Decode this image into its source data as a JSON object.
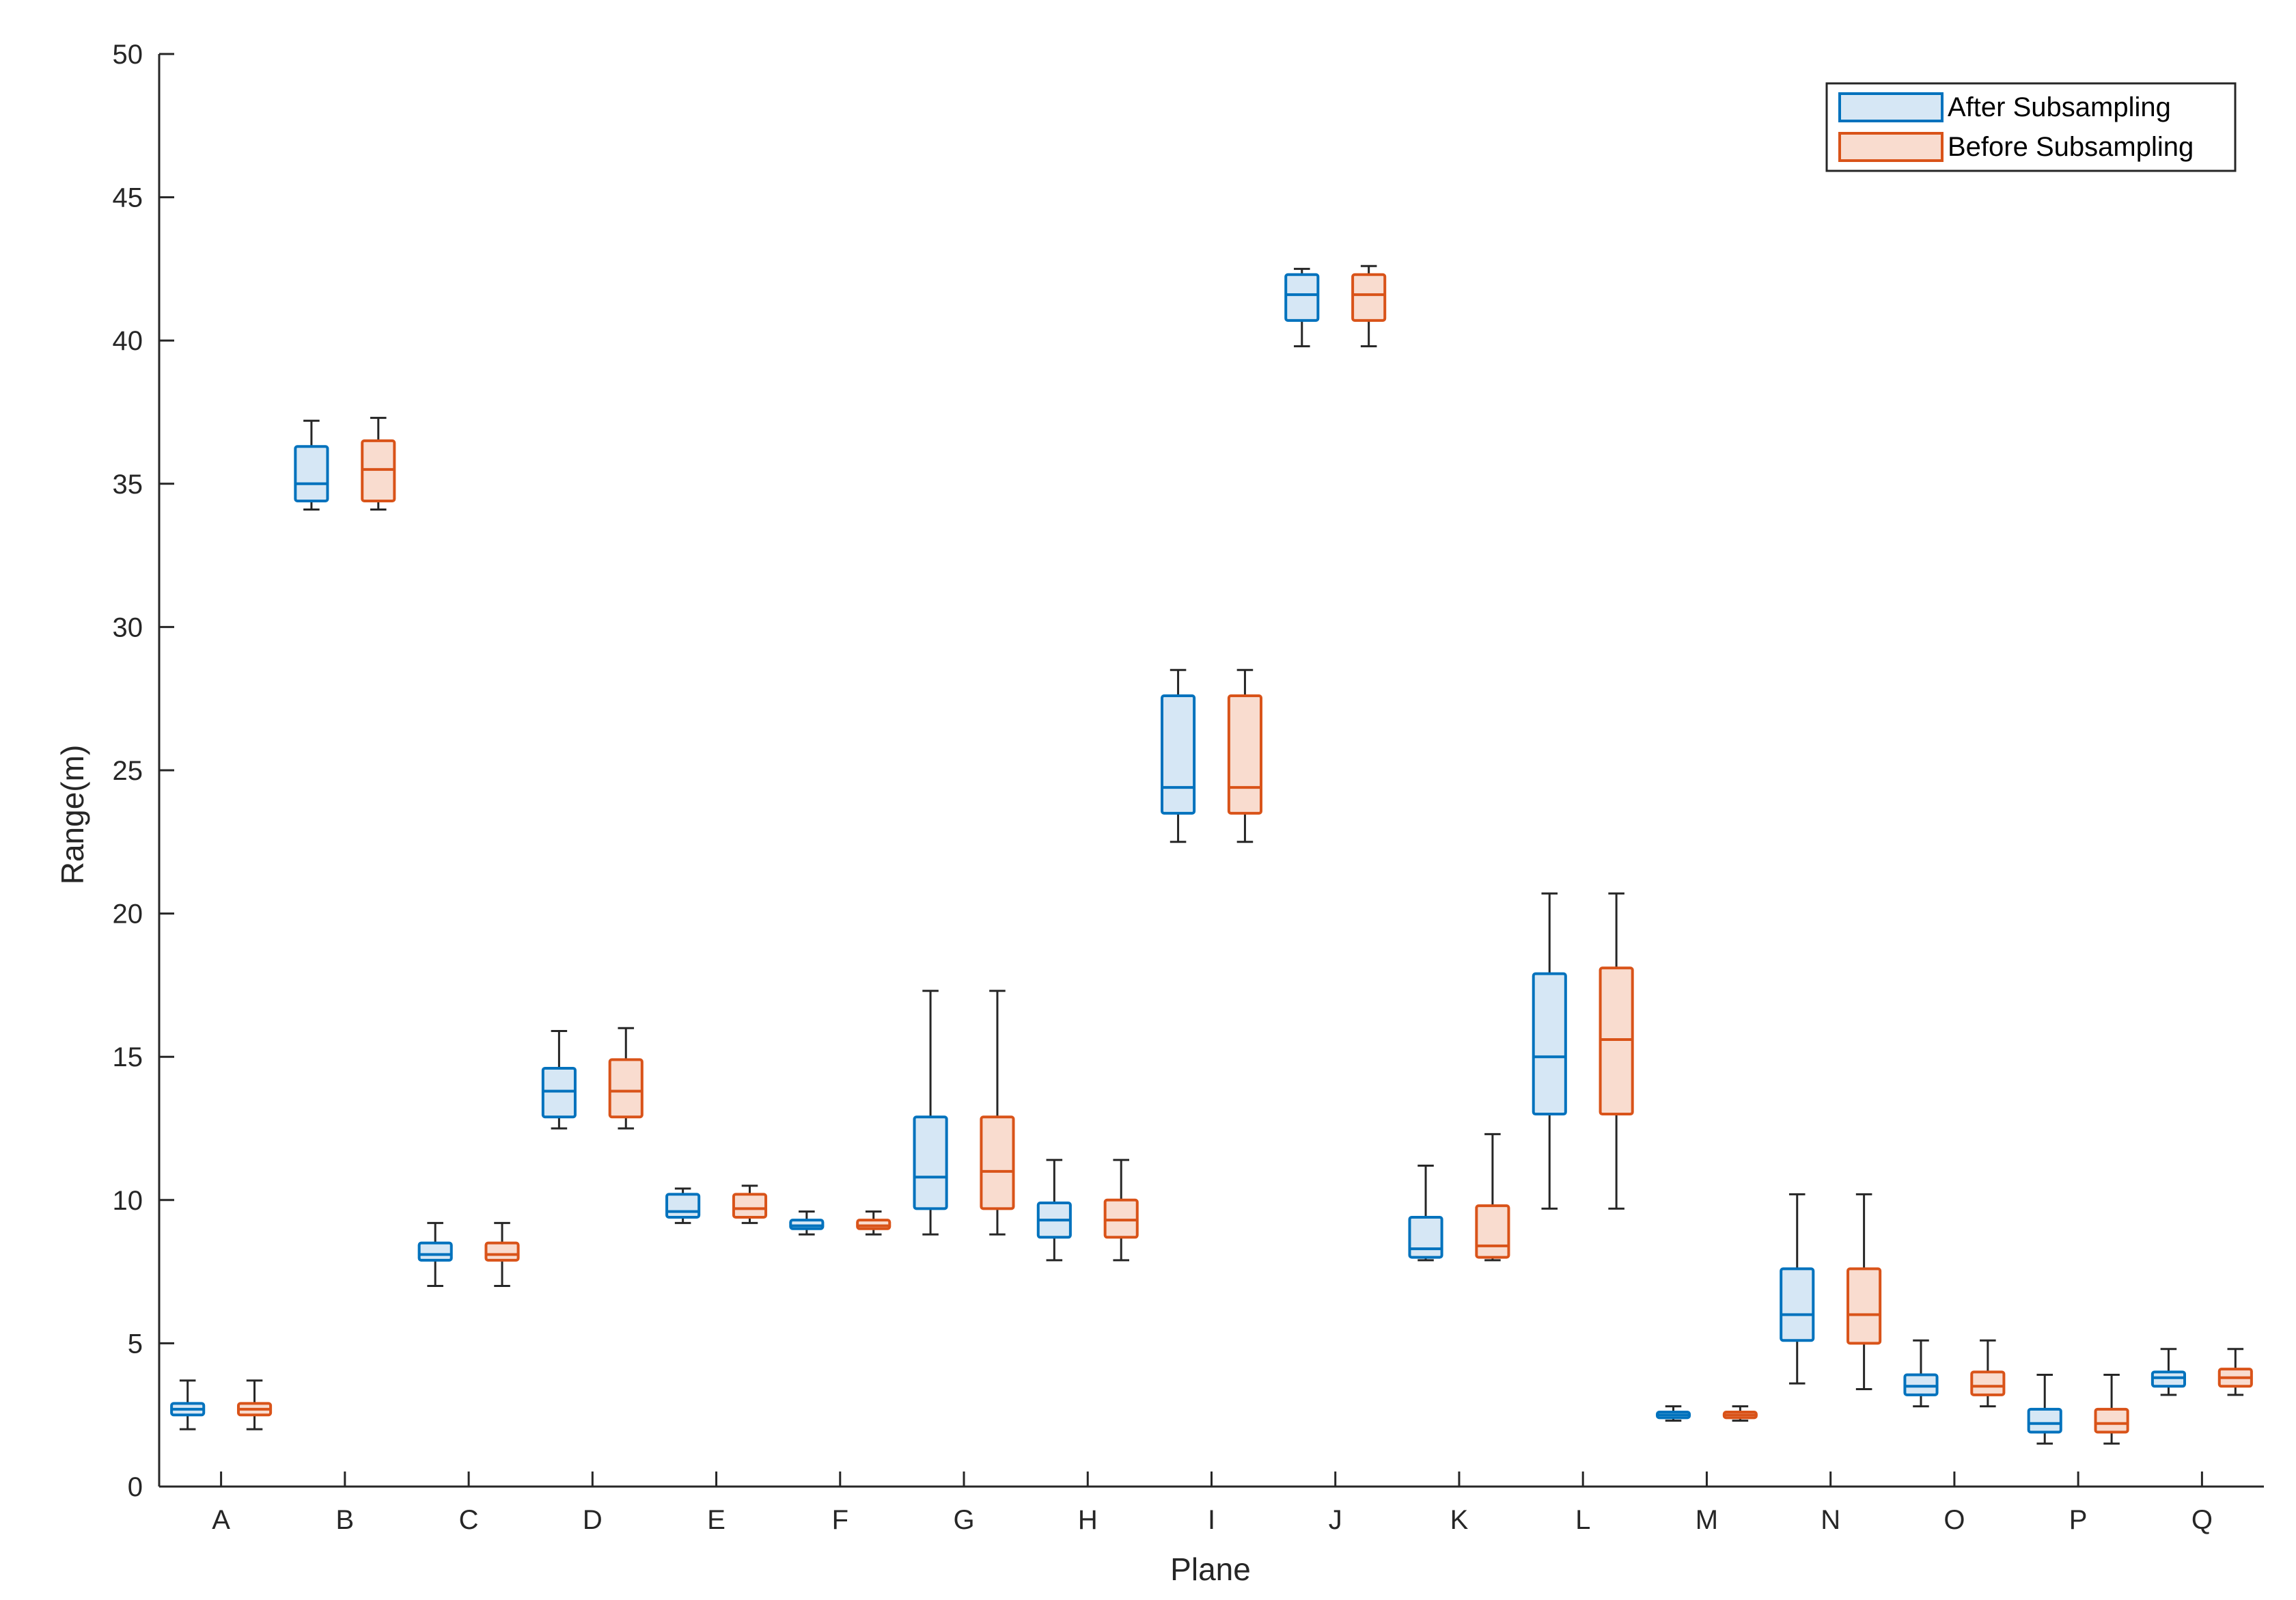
{
  "chart_data": {
    "type": "boxplot",
    "title": "",
    "xlabel": "Plane",
    "ylabel": "Range(m)",
    "ylim": [
      0,
      50
    ],
    "yticks": [
      0,
      5,
      10,
      15,
      20,
      25,
      30,
      35,
      40,
      45,
      50
    ],
    "categories": [
      "A",
      "B",
      "C",
      "D",
      "E",
      "F",
      "G",
      "H",
      "I",
      "J",
      "K",
      "L",
      "M",
      "N",
      "O",
      "P",
      "Q"
    ],
    "legend_position": "top-right",
    "series": [
      {
        "name": "After Subsampling",
        "edge_color": "#0072BD",
        "fill_color": "#D6E7F5",
        "boxes": [
          {
            "min": 2.0,
            "q1": 2.5,
            "median": 2.7,
            "q3": 2.9,
            "max": 3.7
          },
          {
            "min": 34.1,
            "q1": 34.4,
            "median": 35.0,
            "q3": 36.3,
            "max": 37.2
          },
          {
            "min": 7.0,
            "q1": 7.9,
            "median": 8.1,
            "q3": 8.5,
            "max": 9.2
          },
          {
            "min": 12.5,
            "q1": 12.9,
            "median": 13.8,
            "q3": 14.6,
            "max": 15.9
          },
          {
            "min": 9.2,
            "q1": 9.4,
            "median": 9.6,
            "q3": 10.2,
            "max": 10.4
          },
          {
            "min": 8.8,
            "q1": 9.0,
            "median": 9.1,
            "q3": 9.3,
            "max": 9.6
          },
          {
            "min": 8.8,
            "q1": 9.7,
            "median": 10.8,
            "q3": 12.9,
            "max": 17.3
          },
          {
            "min": 7.9,
            "q1": 8.7,
            "median": 9.3,
            "q3": 9.9,
            "max": 11.4
          },
          {
            "min": 22.5,
            "q1": 23.5,
            "median": 24.4,
            "q3": 27.6,
            "max": 28.5
          },
          {
            "min": 39.8,
            "q1": 40.7,
            "median": 41.6,
            "q3": 42.3,
            "max": 42.5
          },
          {
            "min": 7.9,
            "q1": 8.0,
            "median": 8.3,
            "q3": 9.4,
            "max": 11.2
          },
          {
            "min": 9.7,
            "q1": 13.0,
            "median": 15.0,
            "q3": 17.9,
            "max": 20.7
          },
          {
            "min": 2.3,
            "q1": 2.4,
            "median": 2.5,
            "q3": 2.6,
            "max": 2.8
          },
          {
            "min": 3.6,
            "q1": 5.1,
            "median": 6.0,
            "q3": 7.6,
            "max": 10.2
          },
          {
            "min": 2.8,
            "q1": 3.2,
            "median": 3.5,
            "q3": 3.9,
            "max": 5.1
          },
          {
            "min": 1.5,
            "q1": 1.9,
            "median": 2.2,
            "q3": 2.7,
            "max": 3.9
          },
          {
            "min": 3.2,
            "q1": 3.5,
            "median": 3.8,
            "q3": 4.0,
            "max": 4.8
          }
        ]
      },
      {
        "name": "Before Subsampling",
        "edge_color": "#D95319",
        "fill_color": "#F9DCCF",
        "boxes": [
          {
            "min": 2.0,
            "q1": 2.5,
            "median": 2.7,
            "q3": 2.9,
            "max": 3.7
          },
          {
            "min": 34.1,
            "q1": 34.4,
            "median": 35.5,
            "q3": 36.5,
            "max": 37.3
          },
          {
            "min": 7.0,
            "q1": 7.9,
            "median": 8.1,
            "q3": 8.5,
            "max": 9.2
          },
          {
            "min": 12.5,
            "q1": 12.9,
            "median": 13.8,
            "q3": 14.9,
            "max": 16.0
          },
          {
            "min": 9.2,
            "q1": 9.4,
            "median": 9.7,
            "q3": 10.2,
            "max": 10.5
          },
          {
            "min": 8.8,
            "q1": 9.0,
            "median": 9.1,
            "q3": 9.3,
            "max": 9.6
          },
          {
            "min": 8.8,
            "q1": 9.7,
            "median": 11.0,
            "q3": 12.9,
            "max": 17.3
          },
          {
            "min": 7.9,
            "q1": 8.7,
            "median": 9.3,
            "q3": 10.0,
            "max": 11.4
          },
          {
            "min": 22.5,
            "q1": 23.5,
            "median": 24.4,
            "q3": 27.6,
            "max": 28.5
          },
          {
            "min": 39.8,
            "q1": 40.7,
            "median": 41.6,
            "q3": 42.3,
            "max": 42.6
          },
          {
            "min": 7.9,
            "q1": 8.0,
            "median": 8.4,
            "q3": 9.8,
            "max": 12.3
          },
          {
            "min": 9.7,
            "q1": 13.0,
            "median": 15.6,
            "q3": 18.1,
            "max": 20.7
          },
          {
            "min": 2.3,
            "q1": 2.4,
            "median": 2.5,
            "q3": 2.6,
            "max": 2.8
          },
          {
            "min": 3.4,
            "q1": 5.0,
            "median": 6.0,
            "q3": 7.6,
            "max": 10.2
          },
          {
            "min": 2.8,
            "q1": 3.2,
            "median": 3.5,
            "q3": 4.0,
            "max": 5.1
          },
          {
            "min": 1.5,
            "q1": 1.9,
            "median": 2.2,
            "q3": 2.7,
            "max": 3.9
          },
          {
            "min": 3.2,
            "q1": 3.5,
            "median": 3.8,
            "q3": 4.1,
            "max": 4.8
          }
        ]
      }
    ]
  }
}
